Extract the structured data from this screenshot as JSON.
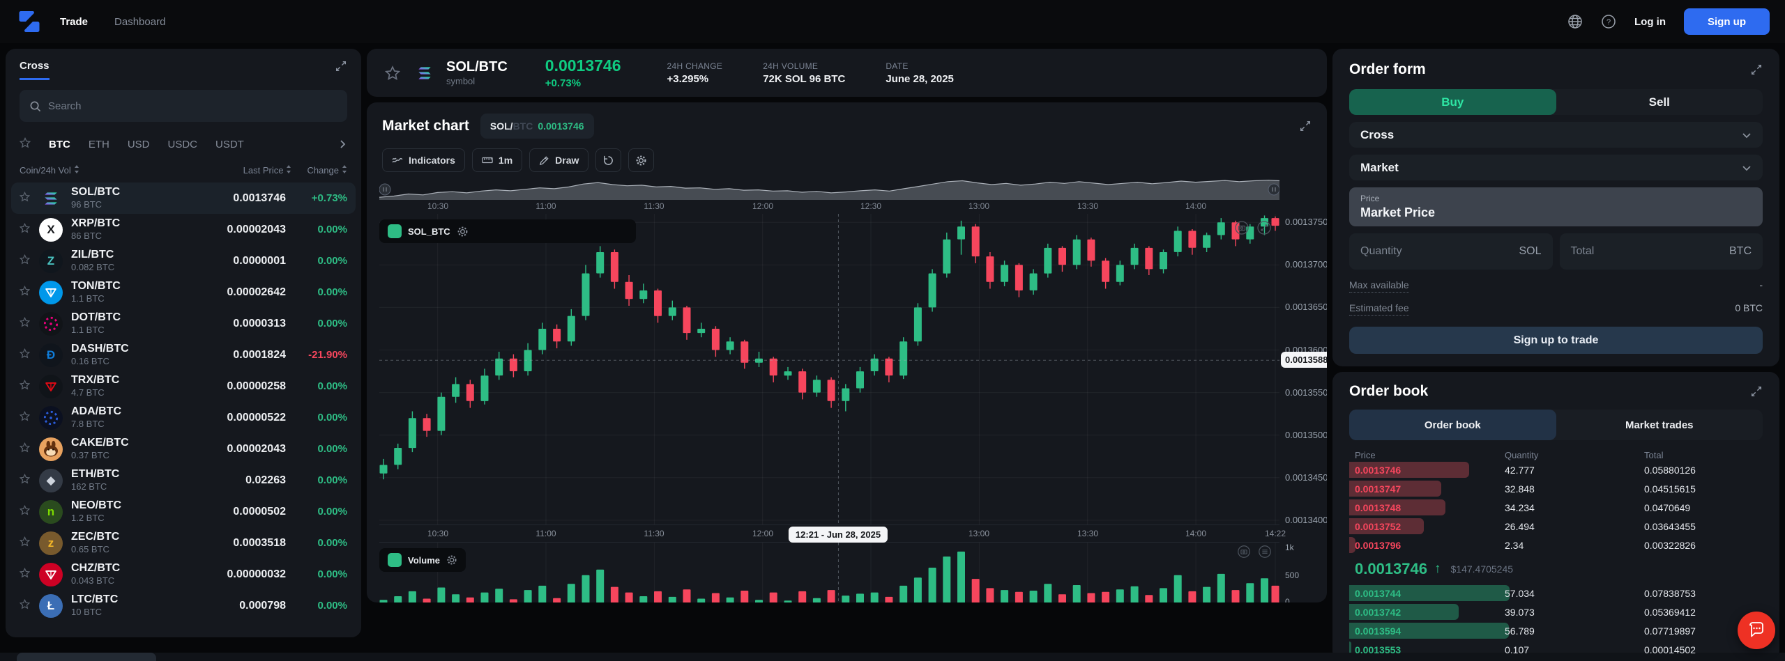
{
  "nav": {
    "links": [
      {
        "label": "Trade",
        "active": true
      },
      {
        "label": "Dashboard",
        "active": false
      }
    ],
    "login_label": "Log in",
    "signup_label": "Sign up"
  },
  "sidebar": {
    "margin_tab": "Cross",
    "search_placeholder": "Search",
    "quote_tabs": [
      "BTC",
      "ETH",
      "USD",
      "USDC",
      "USDT"
    ],
    "active_quote": "BTC",
    "columns": {
      "coin": "Coin/24h Vol",
      "price": "Last Price",
      "change": "Change"
    },
    "pairs": [
      {
        "pair": "SOL/BTC",
        "vol": "96 BTC",
        "price": "0.0013746",
        "change": "+0.73%",
        "dir": "up",
        "selected": true,
        "icon": {
          "type": "sol",
          "bg": "none"
        }
      },
      {
        "pair": "XRP/BTC",
        "vol": "86 BTC",
        "price": "0.00002043",
        "change": "0.00%",
        "dir": "flat",
        "selected": false,
        "icon": {
          "type": "glyph",
          "bg": "#ffffff",
          "fg": "#17191d",
          "glyph": "X"
        }
      },
      {
        "pair": "ZIL/BTC",
        "vol": "0.082 BTC",
        "price": "0.0000001",
        "change": "0.00%",
        "dir": "flat",
        "selected": false,
        "icon": {
          "type": "glyph",
          "bg": "#10161d",
          "fg": "#49c1bf",
          "glyph": "Z"
        }
      },
      {
        "pair": "TON/BTC",
        "vol": "1.1 BTC",
        "price": "0.00002642",
        "change": "0.00%",
        "dir": "flat",
        "selected": false,
        "icon": {
          "type": "tri",
          "bg": "#0098ea",
          "fg": "#ffffff"
        }
      },
      {
        "pair": "DOT/BTC",
        "vol": "1.1 BTC",
        "price": "0.0000313",
        "change": "0.00%",
        "dir": "flat",
        "selected": false,
        "icon": {
          "type": "ring",
          "bg": "#111418",
          "fg": "#e6007a"
        }
      },
      {
        "pair": "DASH/BTC",
        "vol": "0.16 BTC",
        "price": "0.0001824",
        "change": "-21.90%",
        "dir": "down",
        "selected": false,
        "icon": {
          "type": "glyph",
          "bg": "#10151c",
          "fg": "#0f7ddb",
          "glyph": "Ð"
        }
      },
      {
        "pair": "TRX/BTC",
        "vol": "4.7 BTC",
        "price": "0.00000258",
        "change": "0.00%",
        "dir": "flat",
        "selected": false,
        "icon": {
          "type": "tri",
          "bg": "#101419",
          "fg": "#e50915"
        }
      },
      {
        "pair": "ADA/BTC",
        "vol": "7.8 BTC",
        "price": "0.00000522",
        "change": "0.00%",
        "dir": "flat",
        "selected": false,
        "icon": {
          "type": "ring",
          "bg": "#0b1020",
          "fg": "#2a5bd7"
        }
      },
      {
        "pair": "CAKE/BTC",
        "vol": "0.37 BTC",
        "price": "0.00002043",
        "change": "0.00%",
        "dir": "flat",
        "selected": false,
        "icon": {
          "type": "bunny",
          "bg": "#e8a25f"
        }
      },
      {
        "pair": "ETH/BTC",
        "vol": "162 BTC",
        "price": "0.02263",
        "change": "0.00%",
        "dir": "flat",
        "selected": false,
        "icon": {
          "type": "glyph",
          "bg": "#343b46",
          "fg": "#cfd5de",
          "glyph": "◆"
        }
      },
      {
        "pair": "NEO/BTC",
        "vol": "1.2 BTC",
        "price": "0.0000502",
        "change": "0.00%",
        "dir": "flat",
        "selected": false,
        "icon": {
          "type": "glyph",
          "bg": "#2a4b1e",
          "fg": "#7ddb00",
          "glyph": "n"
        }
      },
      {
        "pair": "ZEC/BTC",
        "vol": "0.65 BTC",
        "price": "0.0003518",
        "change": "0.00%",
        "dir": "flat",
        "selected": false,
        "icon": {
          "type": "glyph",
          "bg": "#785a2d",
          "fg": "#f4b728",
          "glyph": "z"
        }
      },
      {
        "pair": "CHZ/BTC",
        "vol": "0.043 BTC",
        "price": "0.00000032",
        "change": "0.00%",
        "dir": "flat",
        "selected": false,
        "icon": {
          "type": "tri",
          "bg": "#cd0124",
          "fg": "#ffffff"
        }
      },
      {
        "pair": "LTC/BTC",
        "vol": "10 BTC",
        "price": "0.000798",
        "change": "0.00%",
        "dir": "flat",
        "selected": false,
        "icon": {
          "type": "glyph",
          "bg": "#3b6eb5",
          "fg": "#ffffff",
          "glyph": "Ł"
        }
      }
    ]
  },
  "symbol_header": {
    "pair": "SOL/BTC",
    "sub": "symbol",
    "price": "0.0013746",
    "change": "+0.73%",
    "stats": [
      {
        "label": "24H CHANGE",
        "value": "+3.295%"
      },
      {
        "label": "24H VOLUME",
        "value": "72K SOL 96 BTC"
      },
      {
        "label": "DATE",
        "value": "June 28, 2025"
      }
    ]
  },
  "chart": {
    "title": "Market chart",
    "badge": {
      "base": "SOL/",
      "quote": "BTC",
      "price": "0.0013746"
    },
    "toolbar": {
      "indicators": "Indicators",
      "interval": "1m",
      "draw": "Draw"
    },
    "legend_main": "SOL_BTC",
    "legend_volume": "Volume",
    "y_labels": [
      "0.00137500",
      "0.00137000",
      "0.00136500",
      "0.00136000",
      "0.00135500",
      "0.00135000",
      "0.00134500",
      "0.00134000"
    ],
    "vol_labels": [
      "1k",
      "500",
      "0"
    ],
    "time_labels": [
      "10:30",
      "11:00",
      "11:30",
      "12:00",
      "12:30",
      "13:00",
      "13:30",
      "14:00",
      "14:22"
    ],
    "nav_labels": [
      "10:30",
      "11:00",
      "11:30",
      "12:00",
      "12:30",
      "13:00",
      "13:30",
      "14:00"
    ],
    "crosshair": {
      "time": "12:21",
      "time_label": "12:21 - Jun 28, 2025",
      "price_label": "0.00135880",
      "price": 13588
    }
  },
  "chart_data": {
    "type": "candlestick",
    "title": "SOL/BTC market chart with volume",
    "x_start": "10:15",
    "x_end": "14:22",
    "price_multiplier": 1e-07,
    "ylim": [
      0.00134,
      0.001376
    ],
    "volume_ylim": [
      0,
      1000
    ],
    "grid": true,
    "up_color": "#2ebd85",
    "down_color": "#f6465d",
    "candles_format": [
      "time",
      "open",
      "high",
      "low",
      "close",
      "volume (prices are value × 1e-7 BTC)"
    ],
    "candles": [
      [
        "10:15",
        13455,
        13472,
        13448,
        13465,
        120
      ],
      [
        "10:19",
        13465,
        13490,
        13460,
        13485,
        180
      ],
      [
        "10:23",
        13485,
        13528,
        13480,
        13520,
        260
      ],
      [
        "10:27",
        13520,
        13525,
        13498,
        13505,
        140
      ],
      [
        "10:31",
        13505,
        13550,
        13500,
        13545,
        320
      ],
      [
        "10:35",
        13545,
        13568,
        13538,
        13560,
        210
      ],
      [
        "10:39",
        13560,
        13565,
        13532,
        13540,
        160
      ],
      [
        "10:43",
        13540,
        13578,
        13536,
        13570,
        240
      ],
      [
        "10:47",
        13570,
        13598,
        13565,
        13590,
        300
      ],
      [
        "10:51",
        13590,
        13595,
        13568,
        13575,
        130
      ],
      [
        "10:55",
        13575,
        13608,
        13570,
        13600,
        280
      ],
      [
        "10:59",
        13600,
        13632,
        13595,
        13625,
        350
      ],
      [
        "11:03",
        13625,
        13630,
        13602,
        13610,
        150
      ],
      [
        "11:07",
        13610,
        13648,
        13605,
        13640,
        380
      ],
      [
        "11:11",
        13640,
        13700,
        13635,
        13690,
        520
      ],
      [
        "11:15",
        13690,
        13722,
        13685,
        13715,
        610
      ],
      [
        "11:19",
        13715,
        13718,
        13672,
        13680,
        330
      ],
      [
        "11:23",
        13680,
        13688,
        13652,
        13660,
        240
      ],
      [
        "11:27",
        13660,
        13678,
        13655,
        13670,
        180
      ],
      [
        "11:31",
        13670,
        13672,
        13632,
        13640,
        260
      ],
      [
        "11:35",
        13640,
        13658,
        13635,
        13650,
        170
      ],
      [
        "11:39",
        13650,
        13652,
        13612,
        13620,
        290
      ],
      [
        "11:43",
        13620,
        13632,
        13615,
        13625,
        140
      ],
      [
        "11:47",
        13625,
        13628,
        13592,
        13600,
        230
      ],
      [
        "11:51",
        13600,
        13615,
        13595,
        13610,
        160
      ],
      [
        "11:55",
        13610,
        13612,
        13578,
        13585,
        270
      ],
      [
        "11:59",
        13585,
        13598,
        13580,
        13590,
        120
      ],
      [
        "12:03",
        13590,
        13592,
        13562,
        13570,
        240
      ],
      [
        "12:07",
        13570,
        13580,
        13565,
        13575,
        110
      ],
      [
        "12:11",
        13575,
        13578,
        13542,
        13550,
        260
      ],
      [
        "12:15",
        13550,
        13570,
        13545,
        13565,
        150
      ],
      [
        "12:19",
        13565,
        13568,
        13532,
        13540,
        280
      ],
      [
        "12:23",
        13540,
        13560,
        13528,
        13555,
        190
      ],
      [
        "12:27",
        13555,
        13580,
        13550,
        13575,
        220
      ],
      [
        "12:31",
        13575,
        13595,
        13570,
        13590,
        240
      ],
      [
        "12:35",
        13590,
        13592,
        13562,
        13570,
        170
      ],
      [
        "12:39",
        13570,
        13615,
        13566,
        13610,
        350
      ],
      [
        "12:43",
        13610,
        13655,
        13605,
        13650,
        480
      ],
      [
        "12:47",
        13650,
        13695,
        13645,
        13690,
        640
      ],
      [
        "12:51",
        13690,
        13738,
        13685,
        13730,
        820
      ],
      [
        "12:55",
        13730,
        13752,
        13712,
        13745,
        900
      ],
      [
        "12:59",
        13745,
        13748,
        13702,
        13710,
        460
      ],
      [
        "13:03",
        13710,
        13715,
        13672,
        13680,
        310
      ],
      [
        "13:07",
        13680,
        13705,
        13675,
        13700,
        280
      ],
      [
        "13:11",
        13700,
        13702,
        13662,
        13670,
        250
      ],
      [
        "13:15",
        13670,
        13695,
        13665,
        13690,
        270
      ],
      [
        "13:19",
        13690,
        13725,
        13685,
        13720,
        380
      ],
      [
        "13:23",
        13720,
        13722,
        13692,
        13700,
        210
      ],
      [
        "13:27",
        13700,
        13735,
        13695,
        13730,
        360
      ],
      [
        "13:31",
        13730,
        13732,
        13698,
        13705,
        230
      ],
      [
        "13:35",
        13705,
        13708,
        13672,
        13680,
        250
      ],
      [
        "13:39",
        13680,
        13705,
        13676,
        13700,
        290
      ],
      [
        "13:43",
        13700,
        13725,
        13695,
        13720,
        340
      ],
      [
        "13:47",
        13720,
        13722,
        13688,
        13695,
        200
      ],
      [
        "13:51",
        13695,
        13718,
        13690,
        13715,
        310
      ],
      [
        "13:55",
        13715,
        13745,
        13710,
        13740,
        520
      ],
      [
        "13:59",
        13740,
        13742,
        13712,
        13720,
        260
      ],
      [
        "14:03",
        13720,
        13738,
        13715,
        13735,
        330
      ],
      [
        "14:07",
        13735,
        13755,
        13730,
        13750,
        540
      ],
      [
        "14:11",
        13750,
        13752,
        13722,
        13730,
        280
      ],
      [
        "14:15",
        13730,
        13748,
        13725,
        13745,
        390
      ],
      [
        "14:19",
        13745,
        13758,
        13735,
        13755,
        470
      ],
      [
        "14:22",
        13755,
        13757,
        13740,
        13746,
        350
      ]
    ]
  },
  "order_form": {
    "title": "Order form",
    "buy_label": "Buy",
    "sell_label": "Sell",
    "margin_mode": "Cross",
    "order_type": "Market",
    "price_label": "Price",
    "price_value": "Market Price",
    "quantity_label": "Quantity",
    "quantity_unit": "SOL",
    "total_label": "Total",
    "total_unit": "BTC",
    "max_available_label": "Max available",
    "max_available_value": "-",
    "estimated_fee_label": "Estimated fee",
    "estimated_fee_value": "0 BTC",
    "submit_label": "Sign up to trade"
  },
  "order_book": {
    "title": "Order book",
    "tabs": {
      "book": "Order book",
      "trades": "Market trades"
    },
    "active_tab": "Order book",
    "columns": {
      "price": "Price",
      "qty": "Quantity",
      "total": "Total"
    },
    "asks": [
      {
        "price": "0.0013746",
        "qty": "42.777",
        "total": "0.05880126"
      },
      {
        "price": "0.0013747",
        "qty": "32.848",
        "total": "0.04515615"
      },
      {
        "price": "0.0013748",
        "qty": "34.234",
        "total": "0.0470649"
      },
      {
        "price": "0.0013752",
        "qty": "26.494",
        "total": "0.03643455"
      },
      {
        "price": "0.0013796",
        "qty": "2.34",
        "total": "0.00322826"
      }
    ],
    "mid": {
      "price": "0.0013746",
      "direction": "up",
      "usd": "$147.4705245"
    },
    "bids": [
      {
        "price": "0.0013744",
        "qty": "57.034",
        "total": "0.07838753"
      },
      {
        "price": "0.0013742",
        "qty": "39.073",
        "total": "0.05369412"
      },
      {
        "price": "0.0013594",
        "qty": "56.789",
        "total": "0.07719897"
      },
      {
        "price": "0.0013553",
        "qty": "0.107",
        "total": "0.00014502"
      }
    ]
  },
  "colors": {
    "green": "#2ebd85",
    "red": "#f6465d",
    "blue": "#2e6bf0",
    "panel": "#15181e",
    "ask_bar": "#5d2d35",
    "bid_bar": "#1f5a47"
  }
}
